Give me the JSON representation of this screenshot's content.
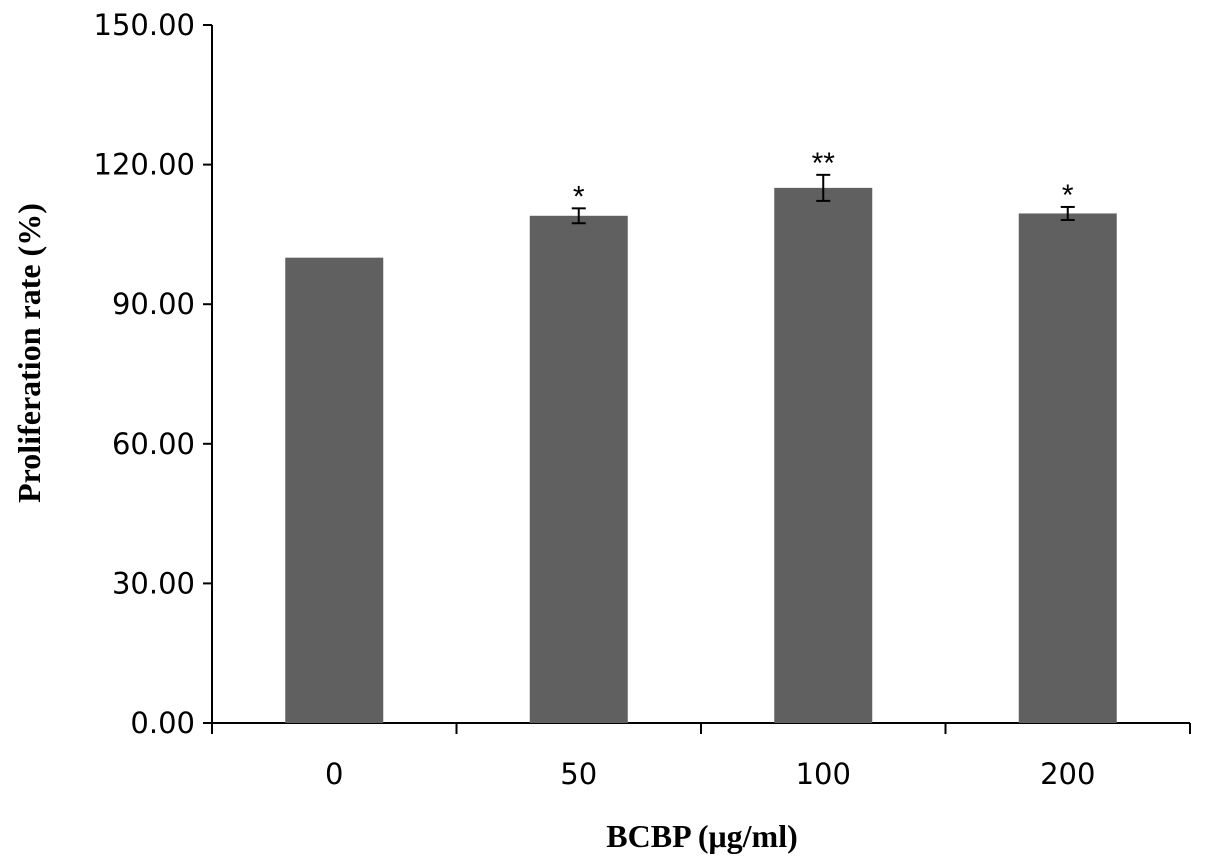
{
  "chart_data": {
    "type": "bar",
    "title": "",
    "xlabel": "BCBP (μg/ml)",
    "ylabel": "Proliferation rate (%)",
    "categories": [
      "0",
      "50",
      "100",
      "200"
    ],
    "values": [
      100.0,
      109.0,
      115.0,
      109.5
    ],
    "error": [
      0.0,
      1.6,
      2.8,
      1.4
    ],
    "significance": [
      "",
      "*",
      "**",
      "*"
    ],
    "ylim": [
      0,
      150
    ],
    "yticks": [
      "0.00",
      "30.00",
      "60.00",
      "90.00",
      "120.00",
      "150.00"
    ],
    "ytick_values": [
      0,
      30,
      60,
      90,
      120,
      150
    ],
    "grid": false,
    "legend": "none",
    "colors": {
      "bar": "#606060",
      "axis": "#000000"
    }
  }
}
